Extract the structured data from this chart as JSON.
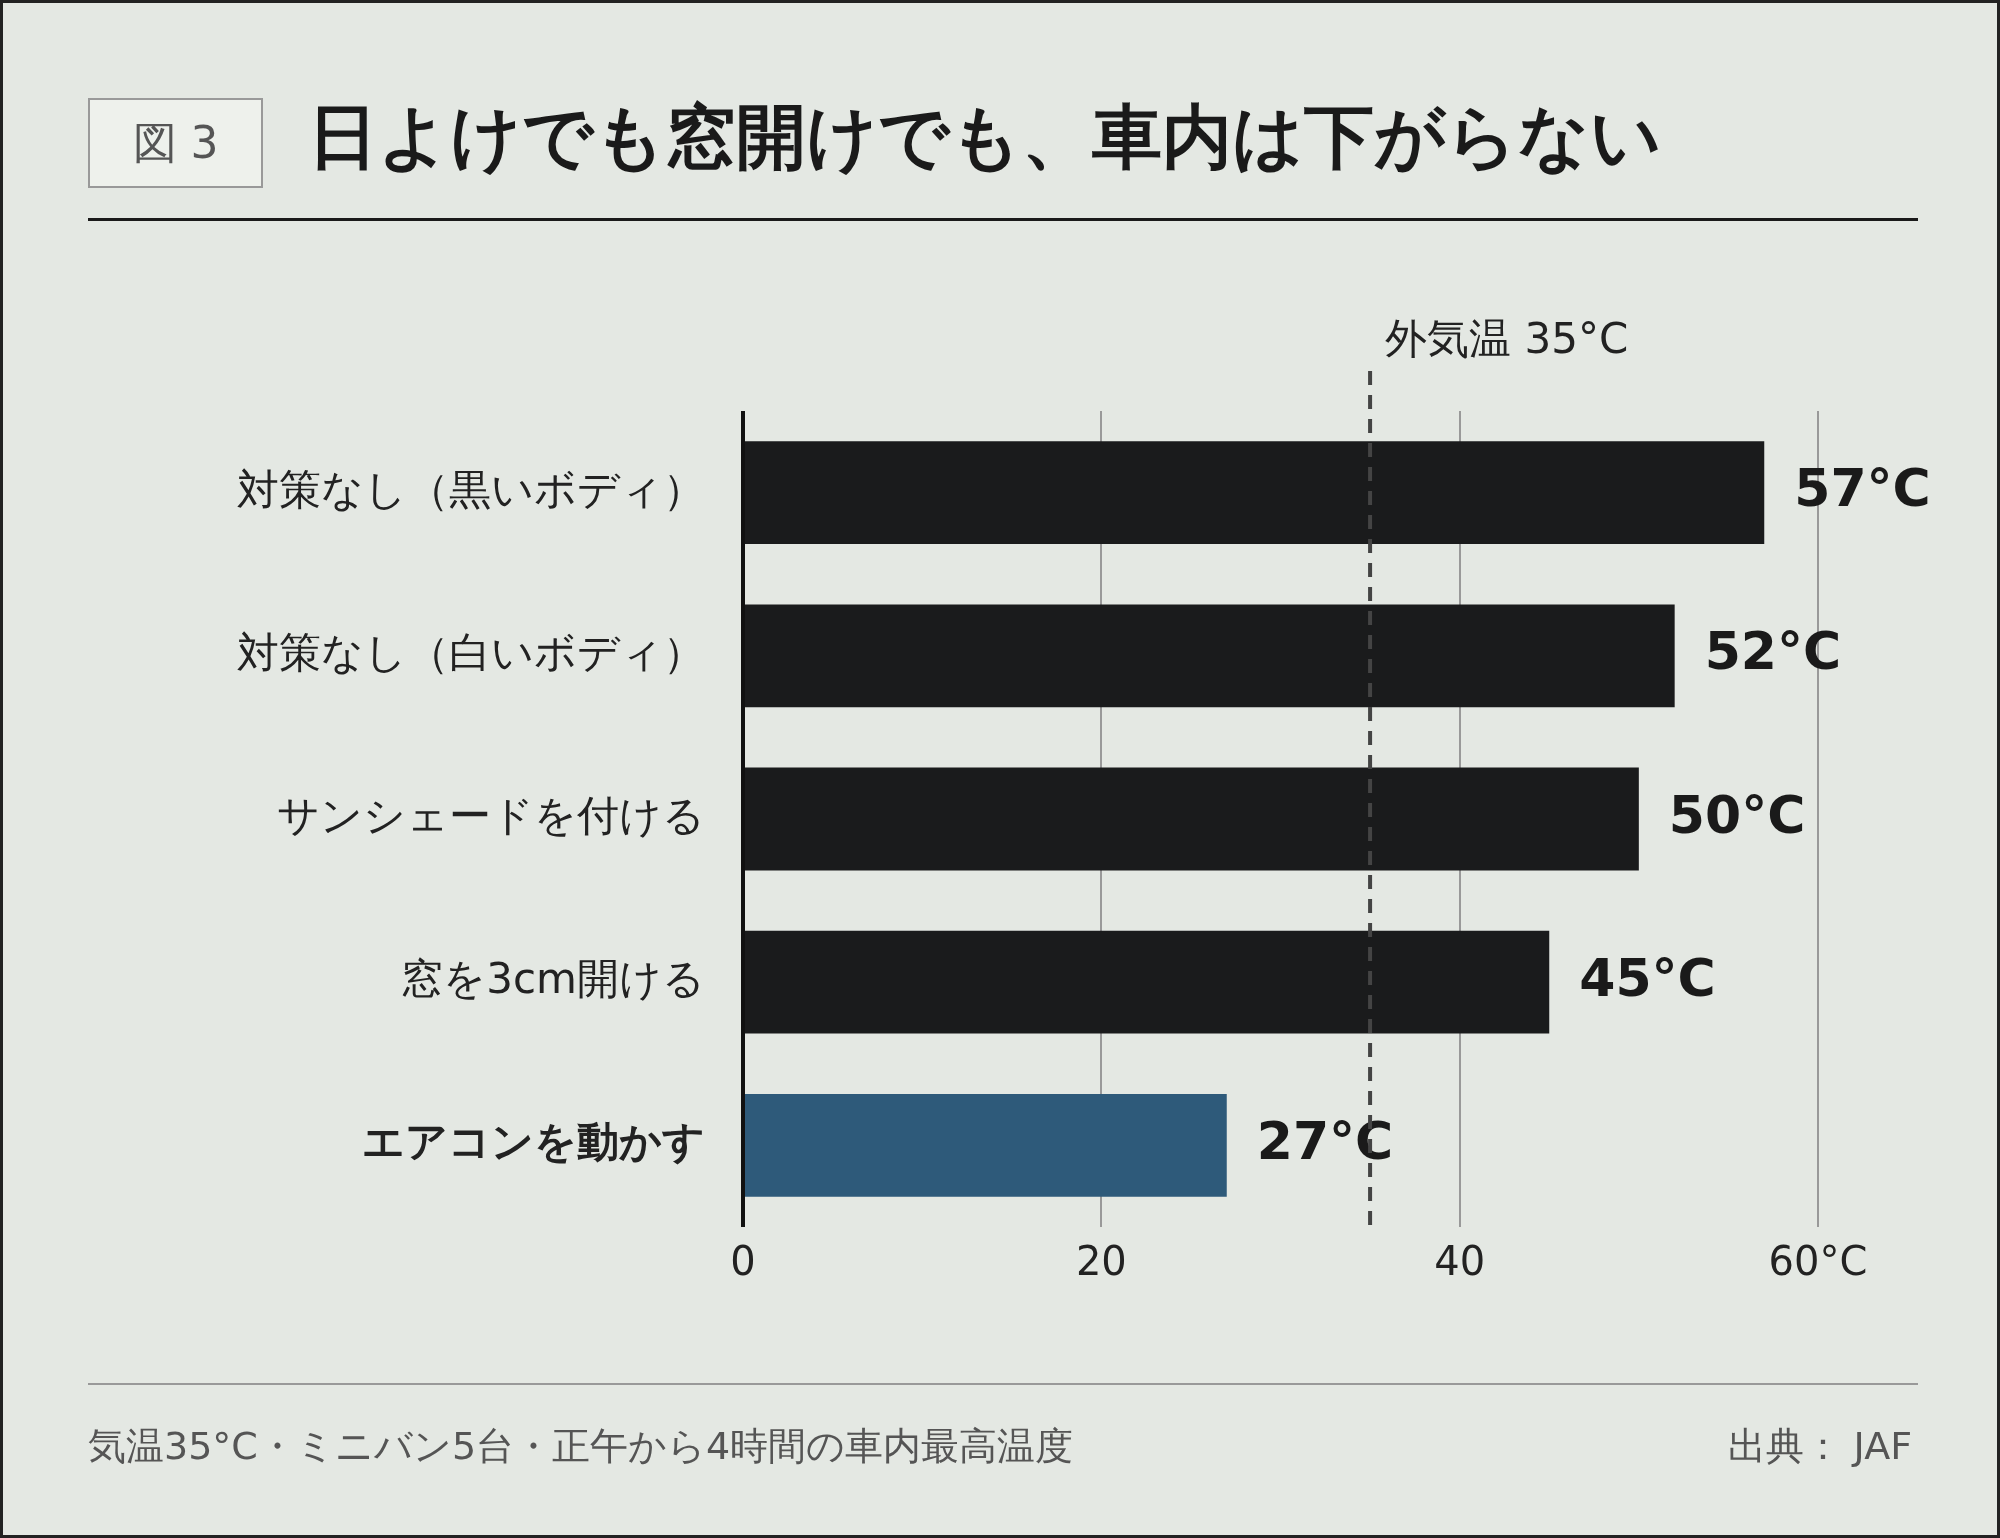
{
  "chart_data": {
    "type": "bar",
    "orientation": "horizontal",
    "title": "日よけでも窓開けでも、車内は下がらない",
    "categories": [
      "対策なし（黒いボディ）",
      "対策なし（白いボディ）",
      "サンシェードを付ける",
      "窓を3cm開ける",
      "エアコンを動かす"
    ],
    "values": [
      57,
      52,
      50,
      45,
      27
    ],
    "colors": [
      "#1a1b1c",
      "#1a1b1c",
      "#1a1b1c",
      "#1a1b1c",
      "#2e5a7a"
    ],
    "value_labels": [
      "57°C",
      "52°C",
      "50°C",
      "45°C",
      "27°C"
    ],
    "xlim": [
      0,
      60
    ],
    "xticks": [
      0,
      20,
      40,
      {
        "value": 60,
        "label": "60°C"
      }
    ],
    "grid": "x",
    "ref_lines": [
      {
        "axis": "x",
        "value": 35,
        "label": "外気温 35°C",
        "color": "#444444",
        "line_style": "dashed"
      }
    ],
    "annotations": [
      "図 3",
      "気温35°C・ミニバン5台・正午から4時間の車内最高温度",
      "出典： JAF"
    ]
  }
}
